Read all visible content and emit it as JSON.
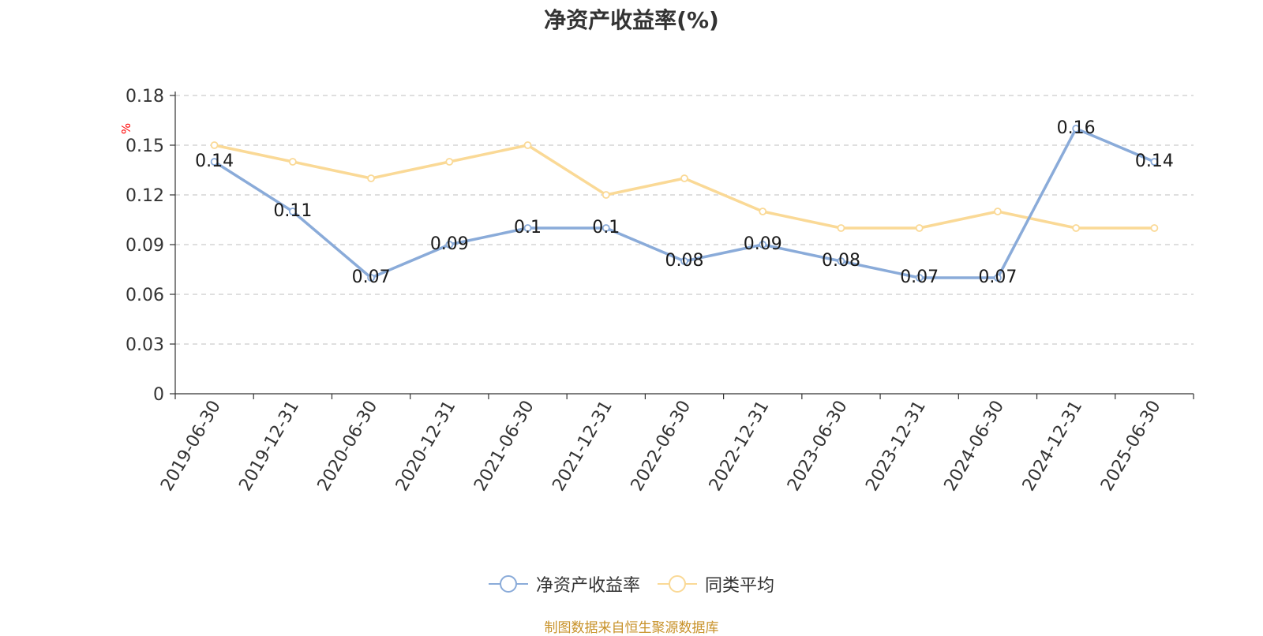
{
  "chart_data": {
    "type": "line",
    "title": "净资产收益率(%)",
    "ylabel": "%",
    "categories": [
      "2019-06-30",
      "2019-12-31",
      "2020-06-30",
      "2020-12-31",
      "2021-06-30",
      "2021-12-31",
      "2022-06-30",
      "2022-12-31",
      "2023-06-30",
      "2023-12-31",
      "2024-06-30",
      "2024-12-31",
      "2025-06-30"
    ],
    "series": [
      {
        "name": "净资产收益率",
        "color": "#8aabd9",
        "values": [
          0.14,
          0.11,
          0.07,
          0.09,
          0.1,
          0.1,
          0.08,
          0.09,
          0.08,
          0.07,
          0.07,
          0.16,
          0.14
        ],
        "labels": [
          "0.14",
          "0.11",
          "0.07",
          "0.09",
          "0.1",
          "0.1",
          "0.08",
          "0.09",
          "0.08",
          "0.07",
          "0.07",
          "0.16",
          "0.14"
        ]
      },
      {
        "name": "同类平均",
        "color": "#fad996",
        "values": [
          0.15,
          0.14,
          0.13,
          0.14,
          0.15,
          0.12,
          0.13,
          0.11,
          0.1,
          0.1,
          0.11,
          0.1,
          0.1
        ]
      }
    ],
    "ylim": [
      0,
      0.18
    ],
    "yticks": [
      "0",
      "0.03",
      "0.06",
      "0.09",
      "0.12",
      "0.15",
      "0.18"
    ],
    "grid": true,
    "legend_position": "bottom"
  },
  "source_note": "制图数据来自恒生聚源数据库"
}
